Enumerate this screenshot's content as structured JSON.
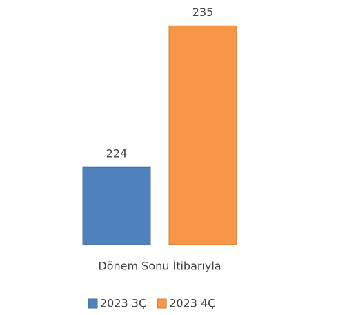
{
  "chart_data": {
    "type": "bar",
    "categories": [
      "Dönem Sonu İtibarıyla"
    ],
    "series": [
      {
        "name": "2023 3Ç",
        "color": "#4f81bd",
        "values": [
          224
        ]
      },
      {
        "name": "2023 4Ç",
        "color": "#f79646",
        "values": [
          235
        ]
      }
    ],
    "ylim": [
      218,
      237
    ],
    "legend": "bottom"
  }
}
